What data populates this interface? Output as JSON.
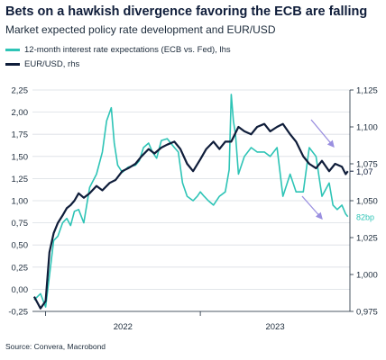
{
  "title": "Bets on a hawkish divergence favoring the ECB are falling",
  "subtitle": "Market expected policy rate development and EUR/USD",
  "source": "Source: Convera, Macrobond",
  "legend": [
    {
      "label": "12-month interest rate expectations (ECB vs. Fed), lhs",
      "color": "#2ec4b6"
    },
    {
      "label": "EUR/USD, rhs",
      "color": "#0f1d3a"
    }
  ],
  "chart_data": {
    "type": "line",
    "title": "Bets on a hawkish divergence favoring the ECB are falling",
    "subtitle": "Market expected policy rate development and EUR/USD",
    "x_tick_labels": [
      "2022",
      "2023"
    ],
    "x_range": [
      "2021-12-01",
      "2023-12-20"
    ],
    "y_left": {
      "range": [
        -0.25,
        2.25
      ],
      "ticks": [
        "2,25",
        "2,00",
        "1,75",
        "1,50",
        "1,25",
        "1,00",
        "0,75",
        "0,50",
        "0,25",
        "0,00",
        "-0,25"
      ]
    },
    "y_right": {
      "range": [
        0.975,
        1.125
      ],
      "ticks": [
        "1,125",
        "1,100",
        "1,075",
        "1,050",
        "1,025",
        "1,000",
        "0,975"
      ]
    },
    "grid": true,
    "legend_position": "top-left",
    "end_labels": {
      "eurusd": "1,07",
      "rates": "82bp"
    },
    "series": [
      {
        "name": "12-month interest rate expectations (ECB vs. Fed), lhs",
        "axis": "left",
        "color": "#2ec4b6",
        "x": [
          "2021-12-05",
          "2021-12-20",
          "2022-01-01",
          "2022-01-10",
          "2022-01-20",
          "2022-01-30",
          "2022-02-10",
          "2022-02-20",
          "2022-03-01",
          "2022-03-10",
          "2022-03-20",
          "2022-04-01",
          "2022-04-15",
          "2022-05-01",
          "2022-05-15",
          "2022-05-25",
          "2022-06-05",
          "2022-06-12",
          "2022-06-20",
          "2022-07-01",
          "2022-07-15",
          "2022-08-01",
          "2022-08-10",
          "2022-08-20",
          "2022-09-01",
          "2022-09-10",
          "2022-09-20",
          "2022-10-01",
          "2022-10-15",
          "2022-11-01",
          "2022-11-10",
          "2022-11-20",
          "2022-12-01",
          "2022-12-15",
          "2022-12-25",
          "2023-01-01",
          "2023-01-10",
          "2023-01-20",
          "2023-02-01",
          "2023-02-15",
          "2023-03-01",
          "2023-03-10",
          "2023-03-15",
          "2023-03-20",
          "2023-03-25",
          "2023-04-01",
          "2023-04-15",
          "2023-05-01",
          "2023-05-15",
          "2023-06-01",
          "2023-06-15",
          "2023-07-01",
          "2023-07-15",
          "2023-08-01",
          "2023-08-15",
          "2023-09-01",
          "2023-09-15",
          "2023-10-01",
          "2023-10-15",
          "2023-11-01",
          "2023-11-10",
          "2023-11-20",
          "2023-12-01",
          "2023-12-10",
          "2023-12-15"
        ],
        "values": [
          -0.12,
          -0.05,
          -0.2,
          0.15,
          0.55,
          0.6,
          0.75,
          0.8,
          0.72,
          0.88,
          0.9,
          0.75,
          1.15,
          1.3,
          1.55,
          1.9,
          2.05,
          1.65,
          1.4,
          1.32,
          1.38,
          1.4,
          1.45,
          1.6,
          1.65,
          1.55,
          1.48,
          1.68,
          1.7,
          1.6,
          1.55,
          1.2,
          1.05,
          1.0,
          1.05,
          1.1,
          1.05,
          1.0,
          0.95,
          1.05,
          1.1,
          1.35,
          2.2,
          1.9,
          1.75,
          1.3,
          1.5,
          1.6,
          1.55,
          1.55,
          1.5,
          1.6,
          1.05,
          1.3,
          1.1,
          1.1,
          1.6,
          1.5,
          1.05,
          1.2,
          0.95,
          0.9,
          0.95,
          0.85,
          0.82
        ]
      },
      {
        "name": "EUR/USD, rhs",
        "axis": "right",
        "color": "#0f1d3a",
        "x": [
          "2021-12-05",
          "2021-12-20",
          "2022-01-01",
          "2022-01-10",
          "2022-01-20",
          "2022-01-30",
          "2022-02-10",
          "2022-02-20",
          "2022-03-01",
          "2022-03-10",
          "2022-03-20",
          "2022-04-01",
          "2022-04-15",
          "2022-05-01",
          "2022-05-15",
          "2022-06-01",
          "2022-06-15",
          "2022-07-01",
          "2022-07-15",
          "2022-08-01",
          "2022-08-15",
          "2022-09-01",
          "2022-09-15",
          "2022-10-01",
          "2022-10-15",
          "2022-11-01",
          "2022-11-15",
          "2022-12-01",
          "2022-12-15",
          "2023-01-01",
          "2023-01-15",
          "2023-02-01",
          "2023-02-15",
          "2023-03-01",
          "2023-03-15",
          "2023-04-01",
          "2023-04-15",
          "2023-05-01",
          "2023-05-15",
          "2023-06-01",
          "2023-06-15",
          "2023-07-01",
          "2023-07-15",
          "2023-08-01",
          "2023-08-15",
          "2023-09-01",
          "2023-09-15",
          "2023-10-01",
          "2023-10-15",
          "2023-11-01",
          "2023-11-15",
          "2023-12-01",
          "2023-12-10",
          "2023-12-15"
        ],
        "values": [
          0.985,
          0.977,
          0.982,
          1.015,
          1.028,
          1.035,
          1.04,
          1.045,
          1.047,
          1.05,
          1.055,
          1.052,
          1.055,
          1.06,
          1.057,
          1.062,
          1.064,
          1.07,
          1.072,
          1.075,
          1.08,
          1.085,
          1.082,
          1.086,
          1.088,
          1.09,
          1.085,
          1.075,
          1.07,
          1.078,
          1.085,
          1.09,
          1.085,
          1.09,
          1.09,
          1.1,
          1.097,
          1.095,
          1.1,
          1.102,
          1.097,
          1.1,
          1.102,
          1.095,
          1.09,
          1.08,
          1.075,
          1.072,
          1.077,
          1.07,
          1.075,
          1.073,
          1.068,
          1.07
        ]
      }
    ]
  }
}
